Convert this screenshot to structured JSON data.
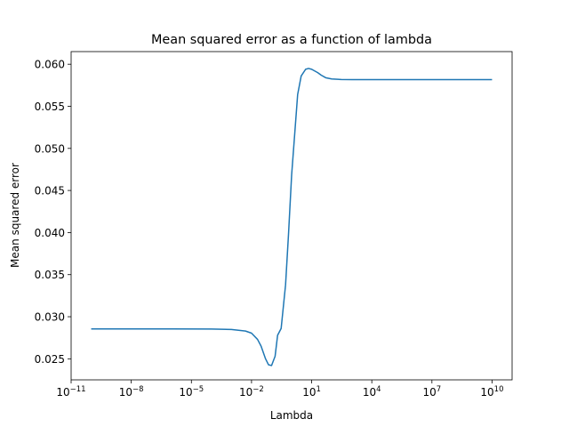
{
  "chart_data": {
    "type": "line",
    "title": "Mean squared error as a function of lambda",
    "xlabel": "Lambda",
    "ylabel": "Mean squared error",
    "xscale": "log",
    "xlim": [
      1e-11,
      100000000000.0
    ],
    "ylim": [
      0.0225,
      0.0615
    ],
    "x_ticks": [
      {
        "value": 1e-11,
        "base": "10",
        "exp": "−11"
      },
      {
        "value": 1e-08,
        "base": "10",
        "exp": "−8"
      },
      {
        "value": 1e-05,
        "base": "10",
        "exp": "−5"
      },
      {
        "value": 0.01,
        "base": "10",
        "exp": "−2"
      },
      {
        "value": 10,
        "base": "10",
        "exp": "1"
      },
      {
        "value": 10000,
        "base": "10",
        "exp": "4"
      },
      {
        "value": 10000000,
        "base": "10",
        "exp": "7"
      },
      {
        "value": 10000000000,
        "base": "10",
        "exp": "10"
      }
    ],
    "y_ticks": [
      {
        "value": 0.025,
        "label": "0.025"
      },
      {
        "value": 0.03,
        "label": "0.030"
      },
      {
        "value": 0.035,
        "label": "0.035"
      },
      {
        "value": 0.04,
        "label": "0.040"
      },
      {
        "value": 0.045,
        "label": "0.045"
      },
      {
        "value": 0.05,
        "label": "0.050"
      },
      {
        "value": 0.055,
        "label": "0.055"
      },
      {
        "value": 0.06,
        "label": "0.060"
      }
    ],
    "grid": false,
    "line_color": "#1f77b4",
    "series": [
      {
        "x": [
          1e-10,
          1e-08,
          1e-06,
          0.0001,
          0.001,
          0.005,
          0.01,
          0.02,
          0.03,
          0.05,
          0.07,
          0.1,
          0.15,
          0.2,
          0.3,
          0.5,
          0.7,
          1,
          1.5,
          2,
          3,
          5,
          7,
          10,
          20,
          30,
          50,
          100,
          300,
          1000,
          10000,
          1000000.0,
          100000000.0,
          10000000000.0
        ],
        "y": [
          0.02855,
          0.02855,
          0.02855,
          0.02854,
          0.02848,
          0.0283,
          0.02805,
          0.0273,
          0.0265,
          0.025,
          0.0243,
          0.0242,
          0.0253,
          0.0278,
          0.0286,
          0.0338,
          0.0398,
          0.0468,
          0.0524,
          0.0564,
          0.0586,
          0.0594,
          0.0595,
          0.0594,
          0.059,
          0.0587,
          0.0584,
          0.05825,
          0.05818,
          0.05817,
          0.05817,
          0.05817,
          0.05817,
          0.05817
        ]
      }
    ]
  }
}
